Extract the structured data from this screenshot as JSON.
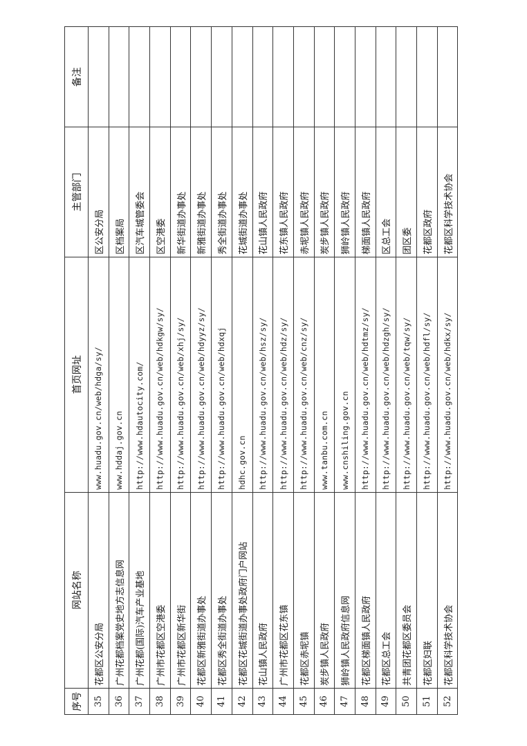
{
  "headers": {
    "no": "序号",
    "name": "网站名称",
    "url": "首页网址",
    "dept": "主管部门",
    "remark": "备注"
  },
  "rows": [
    {
      "no": "35",
      "name": "花都区公安分局",
      "url": "www.huadu.gov.cn/web/hdga/sy/",
      "dept": "区公安分局",
      "remark": ""
    },
    {
      "no": "36",
      "name": "广州花都档案党史地方志信息网",
      "url": "www.hddaj.gov.cn",
      "dept": "区档案局",
      "remark": ""
    },
    {
      "no": "37",
      "name": "广州花都(国际)汽车产业基地",
      "url": "http://www.hdautocity.com/",
      "dept": "区汽车城管委会",
      "remark": ""
    },
    {
      "no": "38",
      "name": "广州市花都区空港委",
      "url": "http://www.huadu.gov.cn/web/hdkgw/sy/",
      "dept": "区空港委",
      "remark": ""
    },
    {
      "no": "39",
      "name": "广州市花都区新华街",
      "url": "http://www.huadu.gov.cn/web/xhj/sy/",
      "dept": "新华街道办事处",
      "remark": ""
    },
    {
      "no": "40",
      "name": "花都区新雅街道办事处",
      "url": "http://www.huadu.gov.cn/web/hdyyz/sy/",
      "dept": "新雅街道办事处",
      "remark": ""
    },
    {
      "no": "41",
      "name": "花都区秀全街道办事处",
      "url": "http://www.huadu.gov.cn/web/hdxqj",
      "dept": "秀全街道办事处",
      "remark": ""
    },
    {
      "no": "42",
      "name": "花都区花城街道办事处政府门户网站",
      "url": "hdhc.gov.cn",
      "dept": "花城街道办事处",
      "remark": ""
    },
    {
      "no": "43",
      "name": "花山镇人民政府",
      "url": "http://www.huadu.gov.cn/web/hsz/sy/",
      "dept": "花山镇人民政府",
      "remark": ""
    },
    {
      "no": "44",
      "name": "广州市花都区花东镇",
      "url": "http://www.huadu.gov.cn/web/hdz/sy/",
      "dept": "花东镇人民政府",
      "remark": ""
    },
    {
      "no": "45",
      "name": "花都区赤坭镇",
      "url": "http://www.huadu.gov.cn/web/cnz/sy/",
      "dept": "赤坭镇人民政府",
      "remark": ""
    },
    {
      "no": "46",
      "name": "炭步镇人民政府",
      "url": "www.tanbu.com.cn",
      "dept": "炭步镇人民政府",
      "remark": ""
    },
    {
      "no": "47",
      "name": "狮岭镇人民政府信息网",
      "url": "www.cnshiling.gov.cn",
      "dept": "狮岭镇人民政府",
      "remark": ""
    },
    {
      "no": "48",
      "name": "花都区梯面镇人民政府",
      "url": "http://www.huadu.gov.cn/web/hdtmz/sy/",
      "dept": "梯面镇人民政府",
      "remark": ""
    },
    {
      "no": "49",
      "name": "花都区总工会",
      "url": "http://www.huadu.gov.cn/web/hdzgh/sy/",
      "dept": "区总工会",
      "remark": ""
    },
    {
      "no": "50",
      "name": "共青团花都区委员会",
      "url": "http://www.huadu.gov.cn/web/tqw/sy/",
      "dept": "团区委",
      "remark": ""
    },
    {
      "no": "51",
      "name": "花都区妇联",
      "url": "http://www.huadu.gov.cn/web/hdfl/sy/",
      "dept": "花都区政府",
      "remark": ""
    },
    {
      "no": "52",
      "name": "花都区科学技术协会",
      "url": "http://www.huadu.gov.cn/web/hdkx/sy/",
      "dept": "花都区科学技术协会",
      "remark": ""
    }
  ]
}
